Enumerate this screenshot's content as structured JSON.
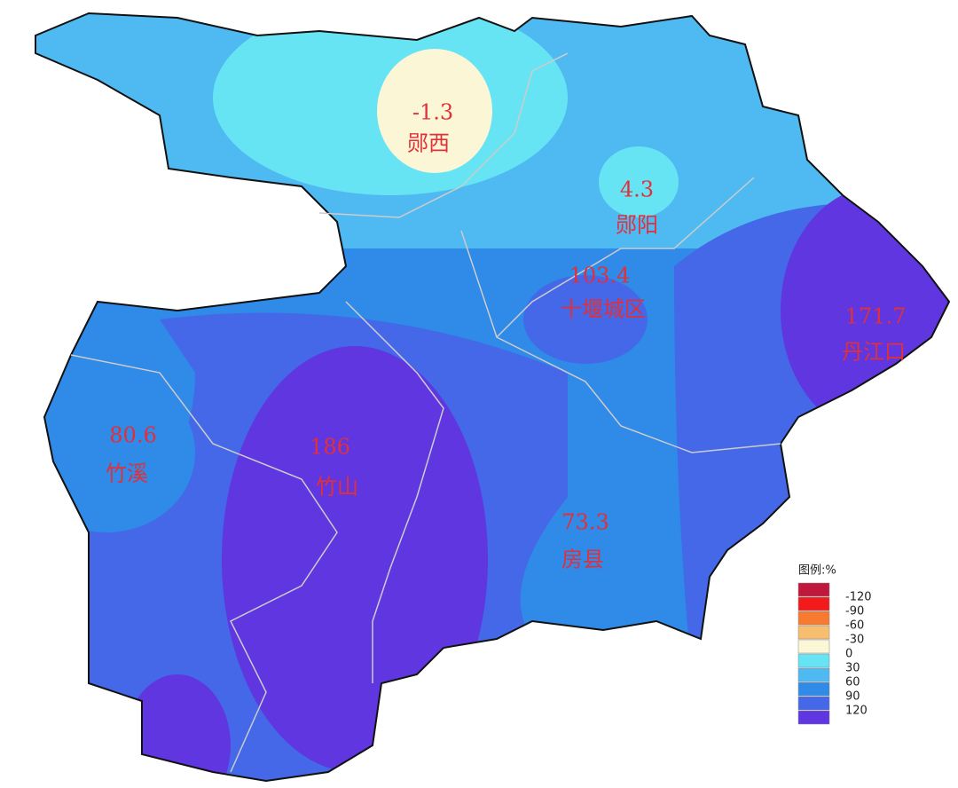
{
  "map": {
    "regions": [
      {
        "value": -1.3,
        "name": "郧西"
      },
      {
        "value": 4.3,
        "name": "郧阳"
      },
      {
        "value": 103.4,
        "name": "十堰城区"
      },
      {
        "value": 171.7,
        "name": "丹江口"
      },
      {
        "value": 80.6,
        "name": "竹溪"
      },
      {
        "value": 186,
        "name": "竹山"
      },
      {
        "value": 73.3,
        "name": "房县"
      }
    ],
    "legend": {
      "title": "图例:%",
      "colors": [
        "#c0183c",
        "#f21a1a",
        "#f77a30",
        "#f8be70",
        "#fbf6d6",
        "#66e4f4",
        "#4fbaf2",
        "#2f8ae8",
        "#4468e8",
        "#6036e0"
      ],
      "breaks": [
        -120,
        -90,
        -60,
        -30,
        0,
        30,
        60,
        90,
        120
      ]
    }
  }
}
